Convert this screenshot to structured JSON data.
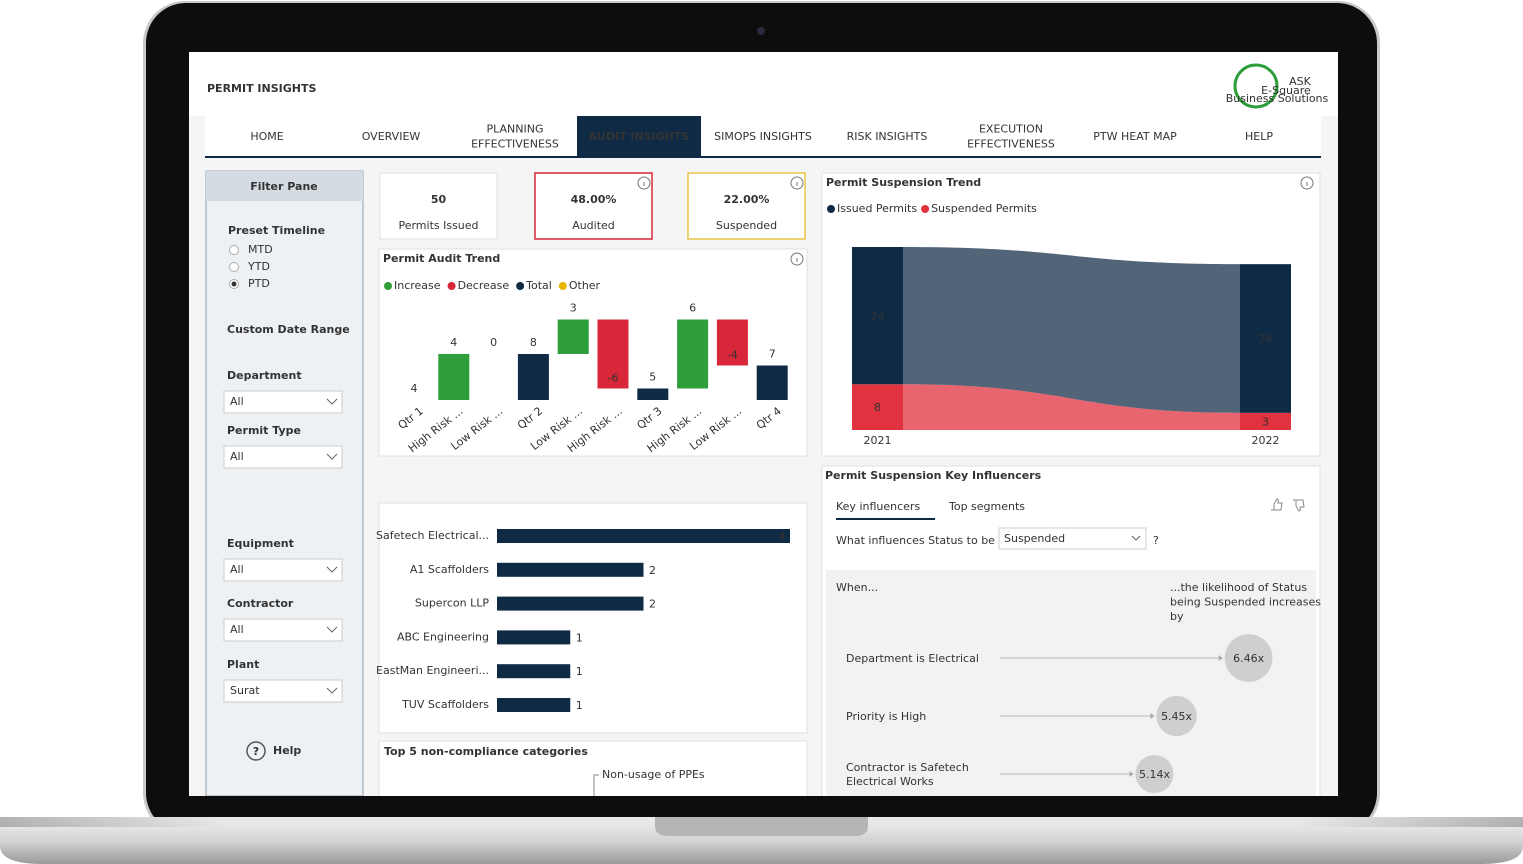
{
  "header": {
    "title": "PERMIT INSIGHTS",
    "logo": {
      "mark": "ASK",
      "name": "E-Square",
      "tagline": "Business Solutions"
    }
  },
  "nav": {
    "items": [
      [
        "HOME"
      ],
      [
        "OVERVIEW"
      ],
      [
        "PLANNING",
        "EFFECTIVENESS"
      ],
      [
        "AUDIT INSIGHTS"
      ],
      [
        "SIMOPS INSIGHTS"
      ],
      [
        "RISK INSIGHTS"
      ],
      [
        "EXECUTION",
        "EFFECTIVENESS"
      ],
      [
        "PTW HEAT MAP"
      ],
      [
        "HELP"
      ]
    ],
    "active": 3
  },
  "filter_pane": {
    "title": "Filter Pane",
    "preset_timeline": {
      "label": "Preset Timeline",
      "options": [
        "MTD",
        "YTD",
        "PTD"
      ],
      "selected": 2
    },
    "custom_date_range": "Custom Date Range",
    "dropdowns": [
      {
        "label": "Department",
        "value": "All"
      },
      {
        "label": "Permit Type",
        "value": "All"
      },
      {
        "label": "Equipment",
        "value": "All"
      },
      {
        "label": "Contractor",
        "value": "All"
      },
      {
        "label": "Plant",
        "value": "Surat"
      }
    ],
    "help": {
      "icon": "?",
      "label": "Help"
    }
  },
  "kpis": [
    {
      "value": "50",
      "label": "Permits Issued"
    },
    {
      "value": "48.00%",
      "label": "Audited"
    },
    {
      "value": "22.00%",
      "label": "Suspended"
    }
  ],
  "non_compliance": {
    "title": "Top 5 non-compliance categories",
    "labels": [
      "Non-usage of PPEs"
    ]
  },
  "chart_data": [
    {
      "type": "waterfall",
      "title": "Permit Audit Trend",
      "legend": [
        {
          "name": "Increase",
          "color": "#2e9e3a"
        },
        {
          "name": "Decrease",
          "color": "#d9273a"
        },
        {
          "name": "Total",
          "color": "#0f2a44"
        },
        {
          "name": "Other",
          "color": "#e8b400"
        }
      ],
      "categories": [
        "Qtr 1",
        "High Risk ...",
        "Low Risk ...",
        "Qtr 2",
        "Low Risk ...",
        "High Risk ...",
        "Qtr 3",
        "High Risk ...",
        "Low Risk ...",
        "Qtr 4"
      ],
      "kinds": [
        "Total",
        "Increase",
        "Increase",
        "Total",
        "Increase",
        "Decrease",
        "Total",
        "Increase",
        "Decrease",
        "Total"
      ],
      "values": [
        4,
        4,
        0,
        8,
        3,
        -6,
        5,
        6,
        -4,
        7
      ],
      "ylim": [
        4,
        12
      ]
    },
    {
      "type": "ribbon",
      "title": "Permit Suspension Trend",
      "categories": [
        "2021",
        "2022"
      ],
      "series": [
        {
          "name": "Issued Permits",
          "color": "#0f2a44",
          "values": [
            24,
            26
          ]
        },
        {
          "name": "Suspended Permits",
          "color": "#e0323f",
          "values": [
            8,
            3
          ]
        }
      ],
      "ylim": [
        0,
        32
      ]
    },
    {
      "type": "barh",
      "categories": [
        "Safetech Electrical...",
        "A1 Scaffolders",
        "Supercon LLP",
        "ABC Engineering",
        "EastMan Engineeri...",
        "TUV Scaffolders"
      ],
      "values": [
        4,
        2,
        2,
        1,
        1,
        1
      ],
      "color": "#0f2a44",
      "xlim": [
        0,
        4
      ]
    },
    {
      "type": "influencers",
      "title": "Permit Suspension Key Influencers",
      "tabs": [
        "Key influencers",
        "Top segments"
      ],
      "question": "What influences Status to be",
      "selected": "Suspended",
      "question_mark": "?",
      "when": "When...",
      "likelihood": [
        "...the likelihood of Status",
        "being Suspended increases",
        "by"
      ],
      "categories": [
        [
          "Department is Electrical"
        ],
        [
          "Priority is High"
        ],
        [
          "Contractor is Safetech",
          "Electrical Works"
        ]
      ],
      "values": [
        6.46,
        5.45,
        5.14
      ],
      "value_labels": [
        "6.46x",
        "5.45x",
        "5.14x"
      ]
    }
  ]
}
